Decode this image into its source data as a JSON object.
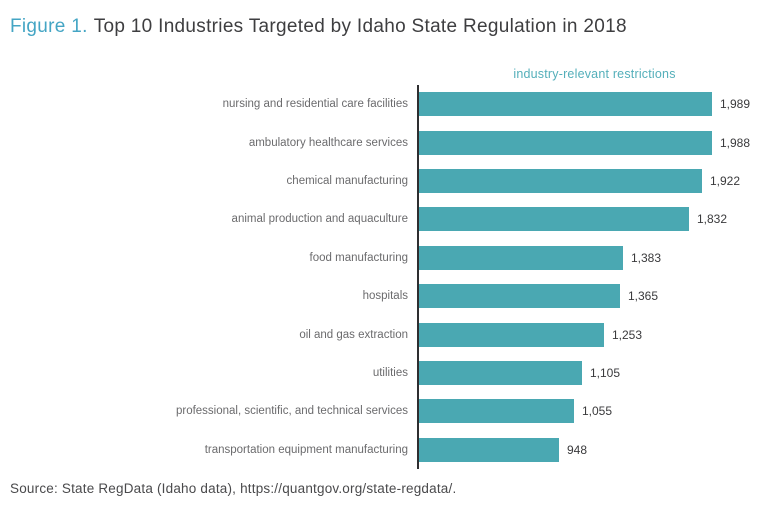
{
  "title": {
    "prefix": "Figure 1.",
    "text": "Top 10 Industries Targeted by Idaho State Regulation in 2018"
  },
  "legend": "industry-relevant restrictions",
  "source": "Source: State RegData (Idaho data), https://quantgov.org/state-regdata/.",
  "colors": {
    "bar": "#4AA8B2",
    "legend_text": "#54AFBA",
    "title_accent": "#44A5C4",
    "title_text": "#3E3E40",
    "label_text": "#6B6B6D",
    "value_text": "#3A3A3C",
    "axis": "#2E2E30",
    "source_text": "#4A4A4C"
  },
  "chart_data": {
    "type": "bar",
    "orientation": "horizontal",
    "title": "Top 10 Industries Targeted by Idaho State Regulation in 2018",
    "legend": "industry-relevant restrictions",
    "legend_position": "top",
    "grid": false,
    "xlim": [
      0,
      2000
    ],
    "categories": [
      "nursing and residential care facilities",
      "ambulatory healthcare services",
      "chemical manufacturing",
      "animal production and aquaculture",
      "food manufacturing",
      "hospitals",
      "oil and gas extraction",
      "utilities",
      "professional, scientific, and technical services",
      "transportation equipment manufacturing"
    ],
    "values": [
      1989,
      1988,
      1922,
      1832,
      1383,
      1365,
      1253,
      1105,
      1055,
      948
    ],
    "value_labels": [
      "1,989",
      "1,988",
      "1,922",
      "1,832",
      "1,383",
      "1,365",
      "1,253",
      "1,105",
      "1,055",
      "948"
    ]
  }
}
